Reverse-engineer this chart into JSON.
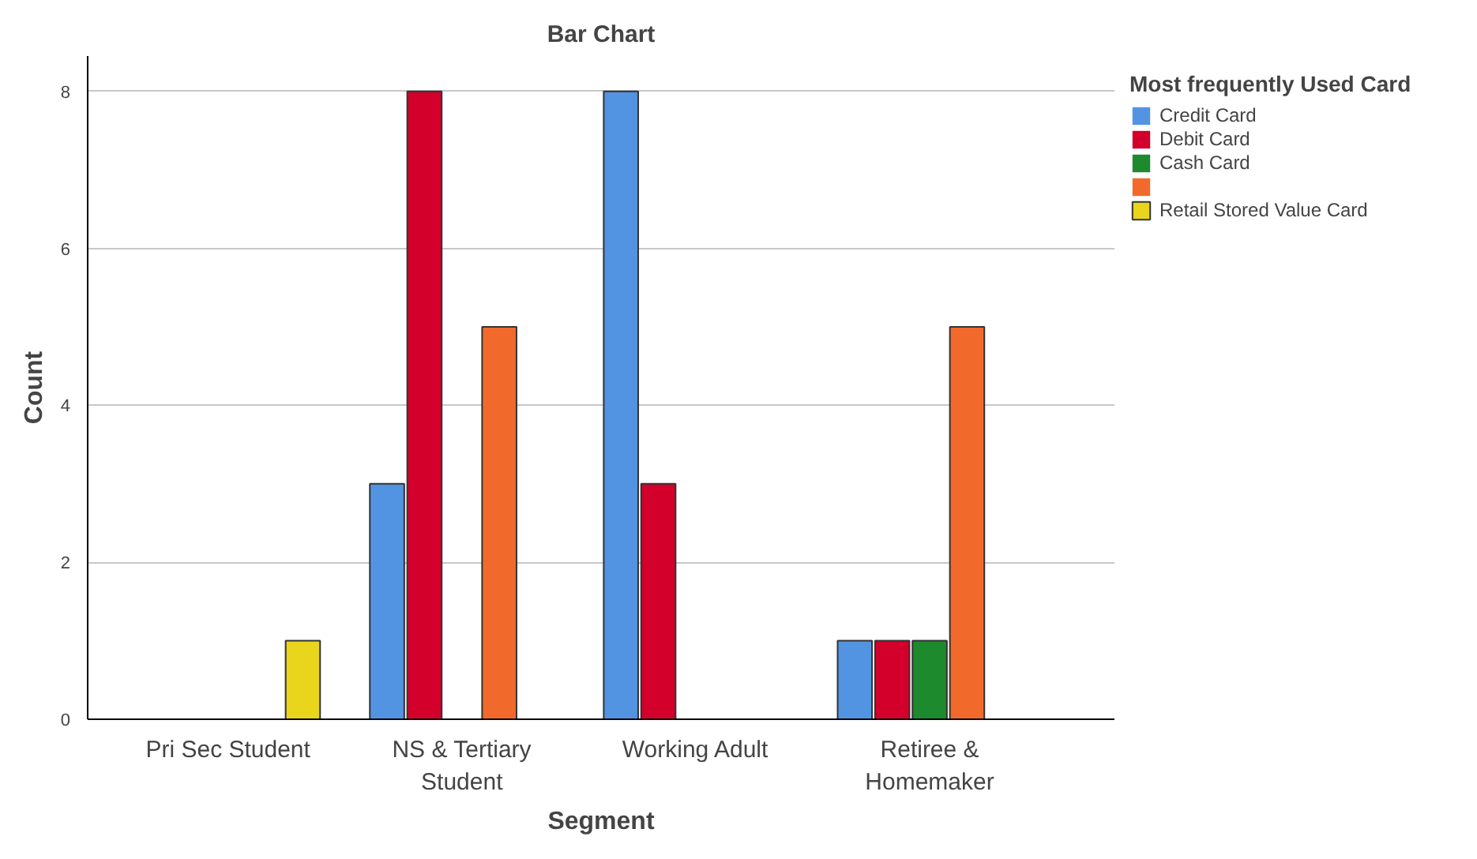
{
  "chart_data": {
    "type": "bar",
    "title": "Bar Chart",
    "xlabel": "Segment",
    "ylabel": "Count",
    "categories": [
      "Pri Sec Student",
      "NS & Tertiary Student",
      "Working Adult",
      "Retiree & Homemaker"
    ],
    "series": [
      {
        "name": "Credit Card",
        "color": "#5294e2",
        "values": [
          0,
          3,
          8,
          1
        ]
      },
      {
        "name": "Debit Card",
        "color": "#d2002a",
        "values": [
          0,
          8,
          3,
          1
        ]
      },
      {
        "name": "Cash Card",
        "color": "#1e8a2e",
        "values": [
          0,
          0,
          0,
          1
        ]
      },
      {
        "color": "#f26a2b",
        "values": [
          0,
          5,
          0,
          5
        ]
      },
      {
        "name": "Retail Stored Value Card",
        "color": "#e8d51c",
        "values": [
          1,
          0,
          0,
          0
        ]
      }
    ],
    "legend_title": "Most frequently Used Card",
    "legend": "right",
    "ylim": [
      0,
      8.45
    ],
    "yticks": [
      0,
      2,
      4,
      6,
      8
    ],
    "grid": "y"
  }
}
